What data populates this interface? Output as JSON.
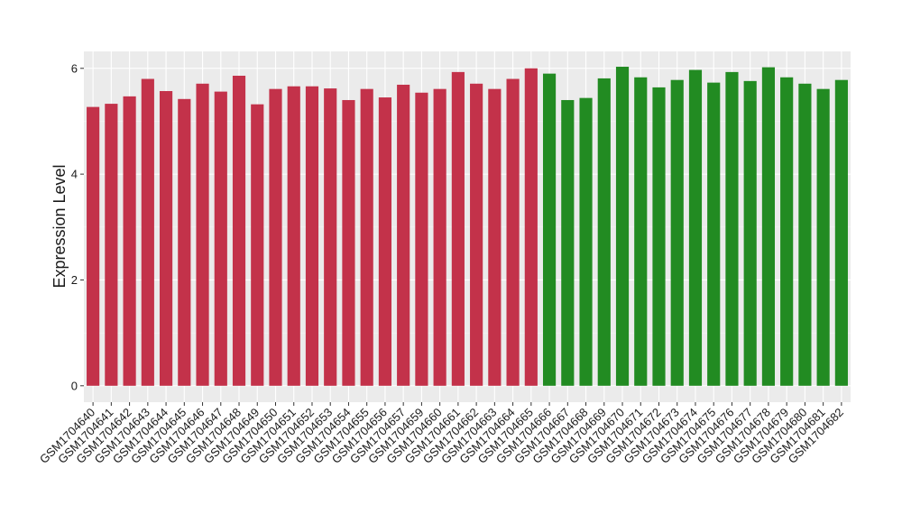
{
  "chart_data": {
    "type": "bar",
    "y_label": "Expression Level",
    "categories": [
      "GSM1704640",
      "GSM1704641",
      "GSM1704642",
      "GSM1704643",
      "GSM1704644",
      "GSM1704645",
      "GSM1704646",
      "GSM1704647",
      "GSM1704648",
      "GSM1704649",
      "GSM1704650",
      "GSM1704651",
      "GSM1704652",
      "GSM1704653",
      "GSM1704654",
      "GSM1704655",
      "GSM1704656",
      "GSM1704657",
      "GSM1704659",
      "GSM1704660",
      "GSM1704661",
      "GSM1704662",
      "GSM1704663",
      "GSM1704664",
      "GSM1704665",
      "GSM1704666",
      "GSM1704667",
      "GSM1704668",
      "GSM1704669",
      "GSM1704670",
      "GSM1704671",
      "GSM1704672",
      "GSM1704673",
      "GSM1704674",
      "GSM1704675",
      "GSM1704676",
      "GSM1704677",
      "GSM1704678",
      "GSM1704679",
      "GSM1704680",
      "GSM1704681",
      "GSM1704682"
    ],
    "values": [
      5.27,
      5.33,
      5.47,
      5.8,
      5.57,
      5.42,
      5.71,
      5.56,
      5.86,
      5.32,
      5.61,
      5.66,
      5.66,
      5.62,
      5.4,
      5.61,
      5.45,
      5.69,
      5.54,
      5.61,
      5.93,
      5.71,
      5.61,
      5.8,
      6.0,
      5.9,
      5.4,
      5.44,
      5.81,
      6.03,
      5.83,
      5.64,
      5.78,
      5.97,
      5.73,
      5.93,
      5.76,
      6.02,
      5.83,
      5.71,
      5.61,
      5.78
    ],
    "colors": [
      "#c3324a",
      "#c3324a",
      "#c3324a",
      "#c3324a",
      "#c3324a",
      "#c3324a",
      "#c3324a",
      "#c3324a",
      "#c3324a",
      "#c3324a",
      "#c3324a",
      "#c3324a",
      "#c3324a",
      "#c3324a",
      "#c3324a",
      "#c3324a",
      "#c3324a",
      "#c3324a",
      "#c3324a",
      "#c3324a",
      "#c3324a",
      "#c3324a",
      "#c3324a",
      "#c3324a",
      "#c3324a",
      "#228b22",
      "#228b22",
      "#228b22",
      "#228b22",
      "#228b22",
      "#228b22",
      "#228b22",
      "#228b22",
      "#228b22",
      "#228b22",
      "#228b22",
      "#228b22",
      "#228b22",
      "#228b22",
      "#228b22",
      "#228b22",
      "#228b22"
    ],
    "ylim": [
      -0.31,
      6.32
    ],
    "yticks": [
      0,
      2,
      4,
      6
    ],
    "grid": true
  }
}
